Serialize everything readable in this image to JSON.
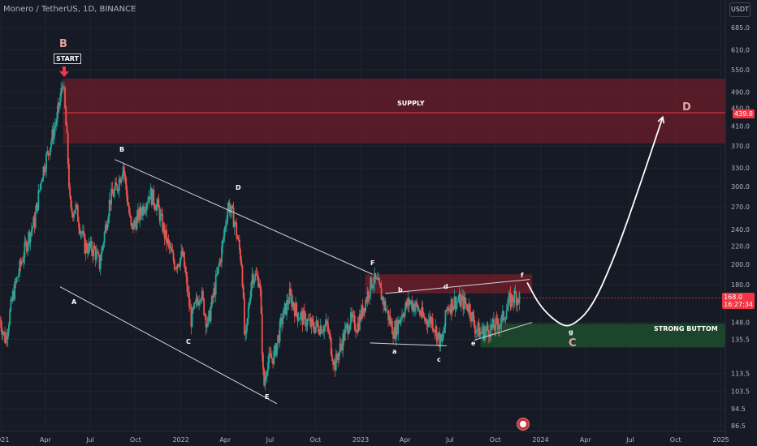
{
  "header": {
    "title": "Monero / TetherUS, 1D, BINANCE",
    "unit": "USDT"
  },
  "colors": {
    "up": "#26a69a",
    "down": "#ef5350",
    "supply_zone": "#6b1d2a",
    "demand_zone": "#1e4d2e",
    "grid": "#1f2430",
    "background": "#161a25"
  },
  "price_tags": [
    {
      "value": "439.8",
      "color": "#f23645"
    },
    {
      "value": "168.0",
      "sub": "16:27:34",
      "color": "#f23645"
    }
  ],
  "annotations": {
    "supply": "SUPPLY",
    "strong_bottom": "STRONG BUTTOM",
    "start": "START",
    "big_b": "B",
    "big_c": "C",
    "big_d": "D",
    "wave_A": "A",
    "wave_B": "B",
    "wave_C": "C",
    "wave_D": "D",
    "wave_E": "E",
    "wave_F": "F",
    "wave_a": "a",
    "wave_b": "b",
    "wave_c": "c",
    "wave_d": "d",
    "wave_e": "e",
    "wave_f": "f",
    "wave_g": "g"
  },
  "chart_data": {
    "type": "candlestick",
    "title": "Monero / TetherUS, 1D, BINANCE",
    "ylabel": "USDT",
    "y_scale": "log",
    "ylim": [
      84,
      790
    ],
    "xlim": [
      "2020-12-30",
      "2025-01-10"
    ],
    "y_ticks": [
      "685.0",
      "610.0",
      "550.0",
      "490.0",
      "450.0",
      "410.0",
      "370.0",
      "330.0",
      "300.0",
      "270.0",
      "240.0",
      "220.0",
      "200.0",
      "180.0",
      "148.0",
      "135.5",
      "113.5",
      "103.5",
      "94.5",
      "86.5"
    ],
    "x_ticks": [
      {
        "date": "2021-01-01",
        "label": "2021"
      },
      {
        "date": "2021-04-01",
        "label": "Apr"
      },
      {
        "date": "2021-07-01",
        "label": "Jul"
      },
      {
        "date": "2021-10-01",
        "label": "Oct"
      },
      {
        "date": "2022-01-01",
        "label": "2022"
      },
      {
        "date": "2022-04-01",
        "label": "Apr"
      },
      {
        "date": "2022-07-01",
        "label": "Jul"
      },
      {
        "date": "2022-10-01",
        "label": "Oct"
      },
      {
        "date": "2023-01-01",
        "label": "2023"
      },
      {
        "date": "2023-04-01",
        "label": "Apr"
      },
      {
        "date": "2023-07-01",
        "label": "Jul"
      },
      {
        "date": "2023-10-01",
        "label": "Oct"
      },
      {
        "date": "2024-01-01",
        "label": "2024"
      },
      {
        "date": "2024-04-01",
        "label": "Apr"
      },
      {
        "date": "2024-07-01",
        "label": "Jul"
      },
      {
        "date": "2024-10-01",
        "label": "Oct"
      },
      {
        "date": "2025-01-01",
        "label": "2025"
      }
    ],
    "price_path": [
      [
        "2020-12-30",
        150
      ],
      [
        "2021-01-10",
        135
      ],
      [
        "2021-01-25",
        170
      ],
      [
        "2021-02-10",
        200
      ],
      [
        "2021-02-25",
        230
      ],
      [
        "2021-03-10",
        250
      ],
      [
        "2021-03-25",
        320
      ],
      [
        "2021-04-10",
        370
      ],
      [
        "2021-04-25",
        430
      ],
      [
        "2021-05-07",
        520
      ],
      [
        "2021-05-15",
        380
      ],
      [
        "2021-05-22",
        260
      ],
      [
        "2021-06-01",
        270
      ],
      [
        "2021-06-20",
        220
      ],
      [
        "2021-07-10",
        215
      ],
      [
        "2021-07-20",
        200
      ],
      [
        "2021-08-10",
        280
      ],
      [
        "2021-08-25",
        300
      ],
      [
        "2021-09-06",
        335
      ],
      [
        "2021-09-22",
        240
      ],
      [
        "2021-10-10",
        260
      ],
      [
        "2021-10-30",
        290
      ],
      [
        "2021-11-15",
        270
      ],
      [
        "2021-12-01",
        230
      ],
      [
        "2021-12-20",
        200
      ],
      [
        "2022-01-05",
        210
      ],
      [
        "2022-01-22",
        150
      ],
      [
        "2022-02-10",
        175
      ],
      [
        "2022-02-24",
        145
      ],
      [
        "2022-03-10",
        175
      ],
      [
        "2022-03-25",
        215
      ],
      [
        "2022-04-07",
        275
      ],
      [
        "2022-04-20",
        250
      ],
      [
        "2022-05-05",
        200
      ],
      [
        "2022-05-11",
        130
      ],
      [
        "2022-05-25",
        190
      ],
      [
        "2022-06-10",
        185
      ],
      [
        "2022-06-18",
        105
      ],
      [
        "2022-06-25",
        120
      ],
      [
        "2022-07-10",
        125
      ],
      [
        "2022-07-25",
        150
      ],
      [
        "2022-08-10",
        170
      ],
      [
        "2022-08-25",
        155
      ],
      [
        "2022-09-10",
        150
      ],
      [
        "2022-09-25",
        145
      ],
      [
        "2022-10-10",
        145
      ],
      [
        "2022-10-25",
        145
      ],
      [
        "2022-11-09",
        118
      ],
      [
        "2022-11-25",
        135
      ],
      [
        "2022-12-10",
        150
      ],
      [
        "2022-12-25",
        145
      ],
      [
        "2023-01-10",
        165
      ],
      [
        "2023-01-25",
        185
      ],
      [
        "2023-02-05",
        180
      ],
      [
        "2023-02-20",
        160
      ],
      [
        "2023-03-10",
        140
      ],
      [
        "2023-03-25",
        155
      ],
      [
        "2023-04-10",
        165
      ],
      [
        "2023-04-25",
        160
      ],
      [
        "2023-05-10",
        150
      ],
      [
        "2023-05-25",
        150
      ],
      [
        "2023-06-10",
        135
      ],
      [
        "2023-06-15",
        132
      ],
      [
        "2023-06-25",
        160
      ],
      [
        "2023-07-10",
        165
      ],
      [
        "2023-07-25",
        165
      ],
      [
        "2023-08-10",
        160
      ],
      [
        "2023-08-20",
        145
      ],
      [
        "2023-09-01",
        140
      ],
      [
        "2023-09-15",
        142
      ],
      [
        "2023-10-01",
        145
      ],
      [
        "2023-10-15",
        150
      ],
      [
        "2023-10-30",
        165
      ],
      [
        "2023-11-10",
        170
      ],
      [
        "2023-11-20",
        168
      ]
    ],
    "last_price": 168.0,
    "countdown": "16:27:34",
    "horizontal_line": 439.8,
    "zones": [
      {
        "name": "SUPPLY",
        "from": "2021-05-07",
        "to": "2025-01-10",
        "low": 375,
        "high": 525
      },
      {
        "name": "upper resistance box",
        "from": "2023-01-10",
        "to": "2023-12-15",
        "low": 172,
        "high": 190
      },
      {
        "name": "STRONG BUTTOM",
        "from": "2023-09-01",
        "to": "2025-01-10",
        "low": 130,
        "high": 147
      }
    ],
    "channel_lines": [
      {
        "from": [
          "2021-08-20",
          345
        ],
        "to": [
          "2023-01-25",
          190
        ]
      },
      {
        "from": [
          "2021-05-01",
          178
        ],
        "to": [
          "2022-07-15",
          97
        ]
      },
      {
        "from": [
          "2023-02-20",
          172
        ],
        "to": [
          "2023-12-10",
          185
        ]
      },
      {
        "from": [
          "2023-01-20",
          133
        ],
        "to": [
          "2023-06-25",
          131
        ]
      },
      {
        "from": [
          "2023-08-20",
          135
        ],
        "to": [
          "2023-12-15",
          148
        ]
      }
    ],
    "projection_path": [
      [
        "2023-12-05",
        182
      ],
      [
        "2024-01-01",
        160
      ],
      [
        "2024-02-10",
        146
      ],
      [
        "2024-03-05",
        145
      ],
      [
        "2024-04-15",
        160
      ],
      [
        "2024-06-01",
        210
      ],
      [
        "2024-07-20",
        300
      ],
      [
        "2024-09-05",
        430
      ]
    ]
  }
}
